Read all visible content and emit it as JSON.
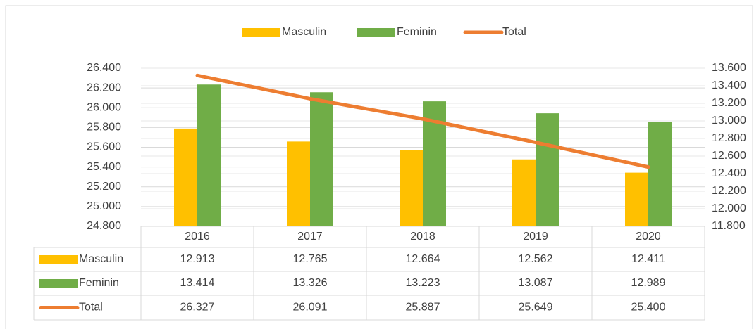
{
  "chart_data": {
    "type": "bar",
    "categories": [
      "2016",
      "2017",
      "2018",
      "2019",
      "2020"
    ],
    "series": [
      {
        "name": "Masculin",
        "color": "#ffc000",
        "axis": "y2",
        "values": [
          12913,
          12765,
          12664,
          12562,
          12411
        ],
        "value_labels": [
          "12.913",
          "12.765",
          "12.664",
          "12.562",
          "12.411"
        ]
      },
      {
        "name": "Feminin",
        "color": "#70ad47",
        "axis": "y2",
        "values": [
          13414,
          13326,
          13223,
          13087,
          12989
        ],
        "value_labels": [
          "13.414",
          "13.326",
          "13.223",
          "13.087",
          "12.989"
        ]
      },
      {
        "name": "Total",
        "type": "line",
        "color": "#ed7d31",
        "values": [
          26327,
          26091,
          25887,
          25649,
          25400
        ],
        "value_labels": [
          "26.327",
          "26.091",
          "25.887",
          "25.649",
          "25.400"
        ]
      }
    ],
    "ylim": [
      24800,
      26400
    ],
    "yticks": [
      {
        "value": 24800,
        "label": "24.800"
      },
      {
        "value": 25000,
        "label": "25.000"
      },
      {
        "value": 25200,
        "label": "25.200"
      },
      {
        "value": 25400,
        "label": "25.400"
      },
      {
        "value": 25600,
        "label": "25.600"
      },
      {
        "value": 25800,
        "label": "25.800"
      },
      {
        "value": 26000,
        "label": "26.000"
      },
      {
        "value": 26200,
        "label": "26.200"
      },
      {
        "value": 26400,
        "label": "26.400"
      }
    ],
    "y2lim": [
      11800,
      13600
    ],
    "y2ticks": [
      {
        "value": 11800,
        "label": "11.800"
      },
      {
        "value": 12000,
        "label": "12.000"
      },
      {
        "value": 12200,
        "label": "12.200"
      },
      {
        "value": 12400,
        "label": "12.400"
      },
      {
        "value": 12600,
        "label": "12.600"
      },
      {
        "value": 12800,
        "label": "12.800"
      },
      {
        "value": 13000,
        "label": "13.000"
      },
      {
        "value": 13200,
        "label": "13.200"
      },
      {
        "value": 13400,
        "label": "13.400"
      },
      {
        "value": 13600,
        "label": "13.600"
      }
    ],
    "grid": true,
    "legend": "top",
    "data_table": true
  }
}
